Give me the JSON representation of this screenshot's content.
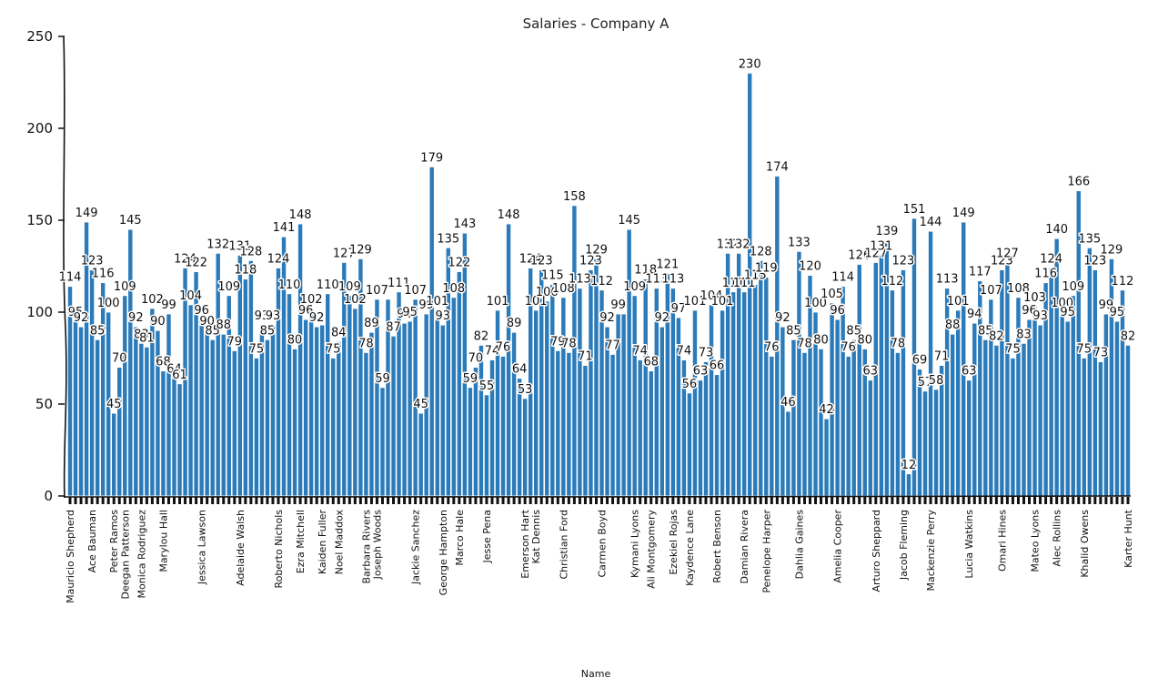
{
  "chart_data": {
    "type": "bar",
    "title": "Salaries - Company A",
    "xlabel": "Name",
    "ylabel": "",
    "ylim": [
      0,
      250
    ],
    "yticks": [
      0,
      50,
      100,
      150,
      200,
      250
    ],
    "grid": false,
    "color": "#2b7bba",
    "series": [
      {
        "values": [
          114,
          95,
          92,
          149,
          123,
          85,
          116,
          100,
          45,
          70,
          109,
          145,
          92,
          83,
          81,
          102,
          90,
          68,
          99,
          64,
          61,
          124,
          104,
          122,
          96,
          90,
          85,
          132,
          88,
          109,
          79,
          131,
          118,
          128,
          75,
          93,
          85,
          93,
          124,
          141,
          110,
          80,
          148,
          96,
          102,
          92,
          93,
          110,
          75,
          84,
          127,
          109,
          102,
          129,
          78,
          89,
          107,
          59,
          107,
          87,
          111,
          94,
          95,
          107,
          45,
          99,
          179,
          101,
          93,
          135,
          108,
          122,
          143,
          59,
          70,
          82,
          55,
          74,
          101,
          76,
          148,
          89,
          64,
          53,
          124,
          101,
          123,
          106,
          115,
          79,
          108,
          78,
          158,
          113,
          71,
          123,
          129,
          112,
          92,
          77,
          99,
          99,
          145,
          109,
          74,
          118,
          68,
          113,
          92,
          121,
          113,
          97,
          74,
          56,
          101,
          63,
          73,
          104,
          66,
          101,
          132,
          111,
          132,
          111,
          230,
          115,
          128,
          119,
          76,
          174,
          92,
          46,
          85,
          133,
          78,
          120,
          100,
          80,
          42,
          105,
          96,
          114,
          76,
          85,
          126,
          80,
          63,
          127,
          131,
          139,
          112,
          78,
          123,
          12,
          151,
          69,
          57,
          144,
          58,
          71,
          113,
          88,
          101,
          149,
          63,
          94,
          117,
          85,
          107,
          82,
          123,
          127,
          75,
          108,
          83,
          96,
          103,
          93,
          116,
          124,
          140,
          100,
          95,
          109,
          166,
          75,
          135,
          123,
          73,
          99,
          129,
          95,
          112,
          82
        ]
      }
    ],
    "value_labels": [
      {
        "i": 0,
        "v": "114"
      },
      {
        "i": 1,
        "v": "95"
      },
      {
        "i": 2,
        "v": "92"
      },
      {
        "i": 3,
        "v": "149"
      },
      {
        "i": 4,
        "v": "123"
      },
      {
        "i": 5,
        "v": "85"
      },
      {
        "i": 6,
        "v": "116"
      },
      {
        "i": 7,
        "v": "100"
      },
      {
        "i": 8,
        "v": "45"
      },
      {
        "i": 9,
        "v": "70"
      },
      {
        "i": 10,
        "v": "109"
      },
      {
        "i": 11,
        "v": "145"
      },
      {
        "i": 12,
        "v": "92"
      },
      {
        "i": 13,
        "v": "83"
      },
      {
        "i": 14,
        "v": "81"
      },
      {
        "i": 15,
        "v": "102"
      },
      {
        "i": 16,
        "v": "90"
      },
      {
        "i": 17,
        "v": "68"
      },
      {
        "i": 18,
        "v": "99"
      },
      {
        "i": 19,
        "v": "64"
      },
      {
        "i": 20,
        "v": "61"
      },
      {
        "i": 21,
        "v": "124"
      },
      {
        "i": 22,
        "v": "104"
      },
      {
        "i": 23,
        "v": "122"
      },
      {
        "i": 24,
        "v": "96"
      },
      {
        "i": 25,
        "v": "90"
      },
      {
        "i": 26,
        "v": "85"
      },
      {
        "i": 27,
        "v": "132"
      },
      {
        "i": 28,
        "v": "88"
      },
      {
        "i": 29,
        "v": "109"
      },
      {
        "i": 30,
        "v": "79"
      },
      {
        "i": 31,
        "v": "131"
      },
      {
        "i": 32,
        "v": "118"
      },
      {
        "i": 33,
        "v": "128"
      },
      {
        "i": 34,
        "v": "75"
      },
      {
        "i": 35,
        "v": "93"
      },
      {
        "i": 36,
        "v": "85"
      },
      {
        "i": 37,
        "v": "93"
      },
      {
        "i": 38,
        "v": "124"
      },
      {
        "i": 39,
        "v": "141"
      },
      {
        "i": 40,
        "v": "110"
      },
      {
        "i": 41,
        "v": "80"
      },
      {
        "i": 42,
        "v": "148"
      },
      {
        "i": 43,
        "v": "96"
      },
      {
        "i": 44,
        "v": "102"
      },
      {
        "i": 45,
        "v": "92"
      },
      {
        "i": 47,
        "v": "110"
      },
      {
        "i": 48,
        "v": "75"
      },
      {
        "i": 49,
        "v": "84"
      },
      {
        "i": 50,
        "v": "127"
      },
      {
        "i": 51,
        "v": "109"
      },
      {
        "i": 52,
        "v": "102"
      },
      {
        "i": 53,
        "v": "129"
      },
      {
        "i": 54,
        "v": "78"
      },
      {
        "i": 55,
        "v": "89"
      },
      {
        "i": 56,
        "v": "107"
      },
      {
        "i": 57,
        "v": "59"
      },
      {
        "i": 59,
        "v": "87"
      },
      {
        "i": 60,
        "v": "111"
      },
      {
        "i": 61,
        "v": "94"
      },
      {
        "i": 62,
        "v": "95"
      },
      {
        "i": 63,
        "v": "107"
      },
      {
        "i": 64,
        "v": "45"
      },
      {
        "i": 65,
        "v": "99"
      },
      {
        "i": 66,
        "v": "179"
      },
      {
        "i": 67,
        "v": "101"
      },
      {
        "i": 68,
        "v": "93"
      },
      {
        "i": 69,
        "v": "135"
      },
      {
        "i": 70,
        "v": "108"
      },
      {
        "i": 71,
        "v": "122"
      },
      {
        "i": 72,
        "v": "143"
      },
      {
        "i": 73,
        "v": "59"
      },
      {
        "i": 74,
        "v": "70"
      },
      {
        "i": 75,
        "v": "82"
      },
      {
        "i": 76,
        "v": "55"
      },
      {
        "i": 77,
        "v": "74"
      },
      {
        "i": 78,
        "v": "101"
      },
      {
        "i": 79,
        "v": "76"
      },
      {
        "i": 80,
        "v": "148"
      },
      {
        "i": 81,
        "v": "89"
      },
      {
        "i": 82,
        "v": "64"
      },
      {
        "i": 83,
        "v": "53"
      },
      {
        "i": 84,
        "v": "124"
      },
      {
        "i": 85,
        "v": "101"
      },
      {
        "i": 86,
        "v": "123"
      },
      {
        "i": 87,
        "v": "106"
      },
      {
        "i": 88,
        "v": "115"
      },
      {
        "i": 89,
        "v": "79"
      },
      {
        "i": 90,
        "v": "108"
      },
      {
        "i": 91,
        "v": "78"
      },
      {
        "i": 92,
        "v": "158"
      },
      {
        "i": 93,
        "v": "113"
      },
      {
        "i": 94,
        "v": "71"
      },
      {
        "i": 95,
        "v": "123"
      },
      {
        "i": 96,
        "v": "129"
      },
      {
        "i": 97,
        "v": "112"
      },
      {
        "i": 98,
        "v": "92"
      },
      {
        "i": 99,
        "v": "77"
      },
      {
        "i": 100,
        "v": "99"
      },
      {
        "i": 102,
        "v": "145"
      },
      {
        "i": 103,
        "v": "109"
      },
      {
        "i": 104,
        "v": "74"
      },
      {
        "i": 105,
        "v": "118"
      },
      {
        "i": 106,
        "v": "68"
      },
      {
        "i": 107,
        "v": "113"
      },
      {
        "i": 108,
        "v": "92"
      },
      {
        "i": 109,
        "v": "121"
      },
      {
        "i": 110,
        "v": "113"
      },
      {
        "i": 111,
        "v": "97"
      },
      {
        "i": 112,
        "v": "74"
      },
      {
        "i": 113,
        "v": "56"
      },
      {
        "i": 114,
        "v": "101"
      },
      {
        "i": 115,
        "v": "63"
      },
      {
        "i": 116,
        "v": "73"
      },
      {
        "i": 117,
        "v": "104"
      },
      {
        "i": 118,
        "v": "66"
      },
      {
        "i": 119,
        "v": "101"
      },
      {
        "i": 120,
        "v": "132"
      },
      {
        "i": 121,
        "v": "111"
      },
      {
        "i": 122,
        "v": "132"
      },
      {
        "i": 123,
        "v": "111"
      },
      {
        "i": 124,
        "v": "230"
      },
      {
        "i": 125,
        "v": "115"
      },
      {
        "i": 126,
        "v": "128"
      },
      {
        "i": 127,
        "v": "119"
      },
      {
        "i": 128,
        "v": "76"
      },
      {
        "i": 129,
        "v": "174"
      },
      {
        "i": 130,
        "v": "92"
      },
      {
        "i": 131,
        "v": "46"
      },
      {
        "i": 132,
        "v": "85"
      },
      {
        "i": 133,
        "v": "133"
      },
      {
        "i": 134,
        "v": "78"
      },
      {
        "i": 135,
        "v": "120"
      },
      {
        "i": 136,
        "v": "100"
      },
      {
        "i": 137,
        "v": "80"
      },
      {
        "i": 138,
        "v": "42"
      },
      {
        "i": 139,
        "v": "105"
      },
      {
        "i": 140,
        "v": "96"
      },
      {
        "i": 141,
        "v": "114"
      },
      {
        "i": 142,
        "v": "76"
      },
      {
        "i": 143,
        "v": "85"
      },
      {
        "i": 144,
        "v": "126"
      },
      {
        "i": 145,
        "v": "80"
      },
      {
        "i": 146,
        "v": "63"
      },
      {
        "i": 147,
        "v": "127"
      },
      {
        "i": 148,
        "v": "131"
      },
      {
        "i": 149,
        "v": "139"
      },
      {
        "i": 150,
        "v": "112"
      },
      {
        "i": 151,
        "v": "78"
      },
      {
        "i": 152,
        "v": "123"
      },
      {
        "i": 153,
        "v": "12"
      },
      {
        "i": 154,
        "v": "151"
      },
      {
        "i": 155,
        "v": "69"
      },
      {
        "i": 156,
        "v": "57"
      },
      {
        "i": 157,
        "v": "144"
      },
      {
        "i": 158,
        "v": "58"
      },
      {
        "i": 159,
        "v": "71"
      },
      {
        "i": 160,
        "v": "113"
      },
      {
        "i": 161,
        "v": "88"
      },
      {
        "i": 162,
        "v": "101"
      },
      {
        "i": 163,
        "v": "149"
      },
      {
        "i": 164,
        "v": "63"
      },
      {
        "i": 165,
        "v": "94"
      },
      {
        "i": 166,
        "v": "117"
      },
      {
        "i": 167,
        "v": "85"
      },
      {
        "i": 168,
        "v": "107"
      },
      {
        "i": 169,
        "v": "82"
      },
      {
        "i": 170,
        "v": "123"
      },
      {
        "i": 171,
        "v": "127"
      },
      {
        "i": 172,
        "v": "75"
      },
      {
        "i": 173,
        "v": "108"
      },
      {
        "i": 174,
        "v": "83"
      },
      {
        "i": 175,
        "v": "96"
      },
      {
        "i": 176,
        "v": "103"
      },
      {
        "i": 177,
        "v": "93"
      },
      {
        "i": 178,
        "v": "116"
      },
      {
        "i": 179,
        "v": "124"
      },
      {
        "i": 180,
        "v": "140"
      },
      {
        "i": 181,
        "v": "100"
      },
      {
        "i": 182,
        "v": "95"
      },
      {
        "i": 183,
        "v": "109"
      },
      {
        "i": 184,
        "v": "166"
      },
      {
        "i": 185,
        "v": "75"
      },
      {
        "i": 186,
        "v": "135"
      },
      {
        "i": 187,
        "v": "123"
      },
      {
        "i": 188,
        "v": "73"
      },
      {
        "i": 189,
        "v": "99"
      },
      {
        "i": 190,
        "v": "129"
      },
      {
        "i": 191,
        "v": "95"
      },
      {
        "i": 192,
        "v": "112"
      },
      {
        "i": 193,
        "v": "82"
      }
    ],
    "category_labels": [
      {
        "i": 0,
        "t": "Mauricio Shepherd"
      },
      {
        "i": 4,
        "t": "Ace Bauman"
      },
      {
        "i": 8,
        "t": "Peter Ramos"
      },
      {
        "i": 10,
        "t": "Deegan Patterson"
      },
      {
        "i": 13,
        "t": "Monica Rodriguez"
      },
      {
        "i": 17,
        "t": "Marylou Hall"
      },
      {
        "i": 24,
        "t": "Jessica Lawson"
      },
      {
        "i": 31,
        "t": "Adelaide Walsh"
      },
      {
        "i": 38,
        "t": "Roberto Nichols"
      },
      {
        "i": 42,
        "t": "Ezra Mitchell"
      },
      {
        "i": 46,
        "t": "Kaiden Fuller"
      },
      {
        "i": 49,
        "t": "Noel Maddox"
      },
      {
        "i": 54,
        "t": "Barbara Rivers"
      },
      {
        "i": 56,
        "t": "Joseph Woods"
      },
      {
        "i": 63,
        "t": "Jackie Sanchez"
      },
      {
        "i": 68,
        "t": "George Hampton"
      },
      {
        "i": 71,
        "t": "Marco Hale"
      },
      {
        "i": 76,
        "t": "Jesse Pena"
      },
      {
        "i": 83,
        "t": "Emerson Hart"
      },
      {
        "i": 85,
        "t": "Kat Dennis"
      },
      {
        "i": 90,
        "t": "Christian Ford"
      },
      {
        "i": 97,
        "t": "Carmen Boyd"
      },
      {
        "i": 103,
        "t": "Kymani Lyons"
      },
      {
        "i": 106,
        "t": "Ali Montgomery"
      },
      {
        "i": 110,
        "t": "Ezekiel Rojas"
      },
      {
        "i": 113,
        "t": "Kaydence Lane"
      },
      {
        "i": 118,
        "t": "Robert Benson"
      },
      {
        "i": 123,
        "t": "Damian Rivera"
      },
      {
        "i": 127,
        "t": "Penelope Harper"
      },
      {
        "i": 133,
        "t": "Dahlia Gaines"
      },
      {
        "i": 140,
        "t": "Amelia Cooper"
      },
      {
        "i": 147,
        "t": "Arturo Sheppard"
      },
      {
        "i": 152,
        "t": "Jacob Fleming"
      },
      {
        "i": 157,
        "t": "Mackenzie Perry"
      },
      {
        "i": 164,
        "t": "Lucia Watkins"
      },
      {
        "i": 170,
        "t": "Omari Hines"
      },
      {
        "i": 176,
        "t": "Mateo Lyons"
      },
      {
        "i": 180,
        "t": "Alec Rollins"
      },
      {
        "i": 185,
        "t": "Khalid Owens"
      },
      {
        "i": 193,
        "t": "Karter Hunt"
      }
    ]
  }
}
